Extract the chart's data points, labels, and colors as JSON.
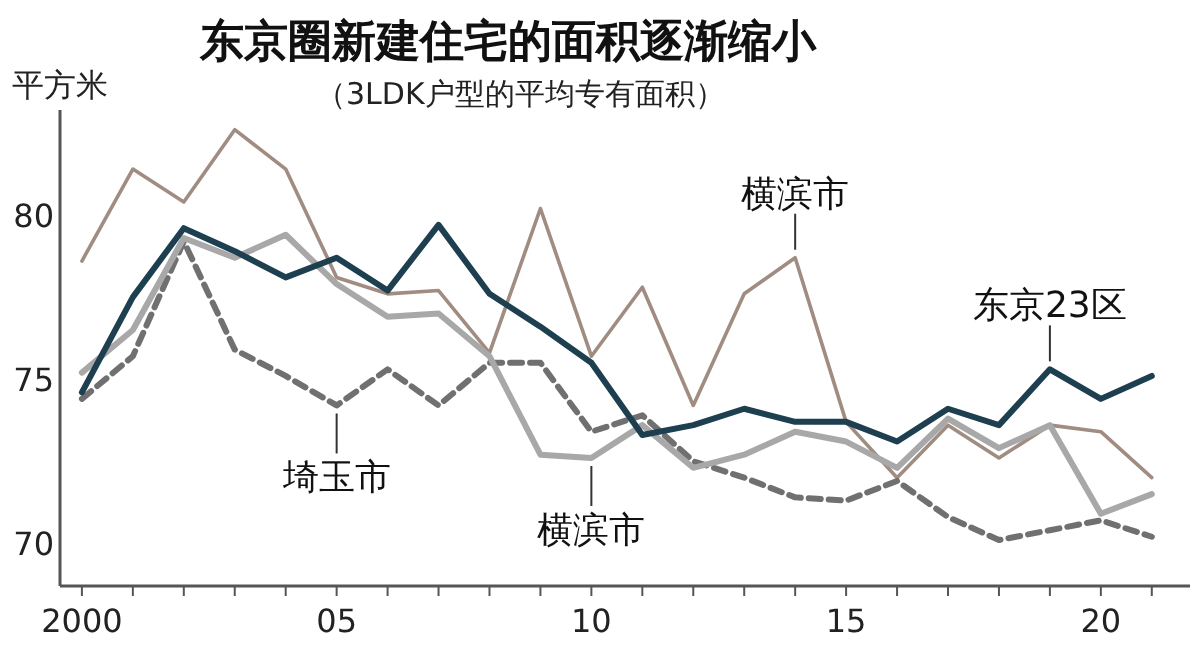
{
  "chart_data": {
    "type": "line",
    "title": "东京圈新建住宅的面积逐渐缩小",
    "subtitle": "（3LDK户型的平均专有面积）",
    "ylabel": "平方米",
    "x": [
      2000,
      2001,
      2002,
      2003,
      2004,
      2005,
      2006,
      2007,
      2008,
      2009,
      2010,
      2011,
      2012,
      2013,
      2014,
      2015,
      2016,
      2017,
      2018,
      2019,
      2020,
      2021
    ],
    "series": [
      {
        "color": "#a08c80",
        "values": [
          78.6,
          81.4,
          80.4,
          82.6,
          81.4,
          78.1,
          77.6,
          77.7,
          75.8,
          80.2,
          75.7,
          77.8,
          74.2,
          77.6,
          78.7,
          73.7,
          72.0,
          73.6,
          72.6,
          73.6,
          73.4,
          72.0
        ]
      },
      {
        "color": "#707070",
        "line_style": "dashed",
        "values": [
          74.4,
          75.7,
          79.2,
          75.9,
          75.1,
          74.2,
          75.3,
          74.2,
          75.5,
          75.5,
          73.4,
          73.9,
          72.5,
          72.0,
          71.4,
          71.3,
          71.9,
          70.8,
          70.1,
          70.4,
          70.7,
          70.2
        ]
      },
      {
        "color": "#a8a8a8",
        "values": [
          75.2,
          76.5,
          79.3,
          78.7,
          79.4,
          77.9,
          76.9,
          77.0,
          75.7,
          72.7,
          72.6,
          73.6,
          72.3,
          72.7,
          73.4,
          73.1,
          72.3,
          73.8,
          72.9,
          73.6,
          70.9,
          71.5
        ]
      },
      {
        "color": "#1d3f4f",
        "values": [
          74.6,
          77.5,
          79.6,
          78.9,
          78.1,
          78.7,
          77.7,
          79.7,
          77.6,
          76.6,
          75.5,
          73.3,
          73.6,
          74.1,
          73.7,
          73.7,
          73.1,
          74.1,
          73.6,
          75.3,
          74.4,
          75.1
        ]
      }
    ],
    "xlim": [
      1999.57,
      2021.75
    ],
    "ylim": [
      68.7,
      83.2
    ],
    "xticks": [
      {
        "value": 2000,
        "label": "2000"
      },
      {
        "value": 2001,
        "label": null
      },
      {
        "value": 2002,
        "label": null
      },
      {
        "value": 2003,
        "label": null
      },
      {
        "value": 2004,
        "label": null
      },
      {
        "value": 2005,
        "label": "05"
      },
      {
        "value": 2006,
        "label": null
      },
      {
        "value": 2007,
        "label": null
      },
      {
        "value": 2008,
        "label": null
      },
      {
        "value": 2009,
        "label": null
      },
      {
        "value": 2010,
        "label": "10"
      },
      {
        "value": 2011,
        "label": null
      },
      {
        "value": 2012,
        "label": null
      },
      {
        "value": 2013,
        "label": null
      },
      {
        "value": 2014,
        "label": null
      },
      {
        "value": 2015,
        "label": "15"
      },
      {
        "value": 2016,
        "label": null
      },
      {
        "value": 2017,
        "label": null
      },
      {
        "value": 2018,
        "label": null
      },
      {
        "value": 2019,
        "label": null
      },
      {
        "value": 2020,
        "label": "20"
      },
      {
        "value": 2021,
        "label": null
      }
    ],
    "yticks": [
      70,
      75,
      80
    ],
    "annotations": [
      {
        "text": "埼玉市",
        "x": 2005,
        "y": 74.2
      },
      {
        "text": "横滨市",
        "x": 2010,
        "y": 72.6
      },
      {
        "text": "横滨市",
        "x": 2014,
        "y": 78.7
      },
      {
        "text": "东京23区",
        "x": 2019,
        "y": 75.3
      }
    ]
  }
}
